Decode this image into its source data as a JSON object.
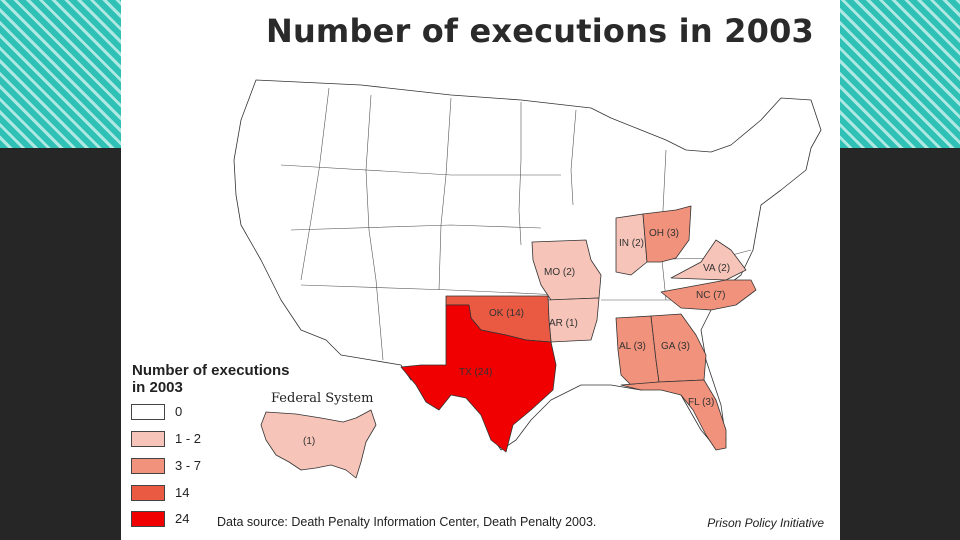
{
  "title": "Number of executions in 2003",
  "legend": {
    "title_line1": "Number of executions",
    "title_line2": "in 2003",
    "items": [
      {
        "label": "0",
        "color": "#ffffff"
      },
      {
        "label": "1 - 2",
        "color": "#f6c4b8"
      },
      {
        "label": "3 - 7",
        "color": "#f1927c"
      },
      {
        "label": "14",
        "color": "#ea5a43"
      },
      {
        "label": "24",
        "color": "#f00000"
      }
    ]
  },
  "federal": {
    "title": "Federal System",
    "label": "(1)"
  },
  "states": {
    "tx": "TX (24)",
    "ok": "OK (14)",
    "ar": "AR (1)",
    "mo": "MO (2)",
    "in": "IN (2)",
    "oh": "OH (3)",
    "va": "VA (2)",
    "nc": "NC (7)",
    "al": "AL (3)",
    "ga": "GA (3)",
    "fl": "FL (3)"
  },
  "source": "Data source: Death Penalty Information Center, Death Penalty 2003.",
  "credit": "Prison Policy Initiative"
}
